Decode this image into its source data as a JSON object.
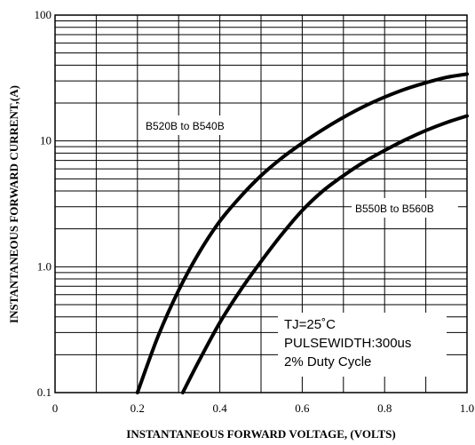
{
  "chart_data": {
    "type": "line",
    "xlabel": "INSTANTANEOUS FORWARD VOLTAGE, (VOLTS)",
    "ylabel": "INSTANTANEOUS FORWARD CURRENT,(A)",
    "xlim": [
      0,
      1.0
    ],
    "ylim": [
      0.1,
      100
    ],
    "y_scale": "log",
    "grid": true,
    "x_ticks": [
      {
        "value": 0,
        "label": "0"
      },
      {
        "value": 0.2,
        "label": "0.2"
      },
      {
        "value": 0.4,
        "label": "0.4"
      },
      {
        "value": 0.6,
        "label": "0.6"
      },
      {
        "value": 0.8,
        "label": "0.8"
      },
      {
        "value": 1.0,
        "label": "1.0"
      }
    ],
    "y_ticks": [
      {
        "value": 0.1,
        "label": "0.1"
      },
      {
        "value": 1,
        "label": "1.0"
      },
      {
        "value": 10,
        "label": "10"
      },
      {
        "value": 100,
        "label": "100"
      }
    ],
    "series": [
      {
        "name": "B520B to B540B",
        "x": [
          0.2,
          0.25,
          0.3,
          0.35,
          0.4,
          0.45,
          0.5,
          0.55,
          0.6,
          0.65,
          0.7,
          0.75,
          0.8,
          0.85,
          0.9,
          0.95,
          1.0
        ],
        "y": [
          0.1,
          0.28,
          0.65,
          1.3,
          2.3,
          3.6,
          5.3,
          7.3,
          9.6,
          12.3,
          15.4,
          18.8,
          22.3,
          25.8,
          29.0,
          32.0,
          34.0
        ]
      },
      {
        "name": "B550B to B560B",
        "x": [
          0.31,
          0.35,
          0.4,
          0.45,
          0.5,
          0.55,
          0.6,
          0.65,
          0.7,
          0.75,
          0.8,
          0.85,
          0.9,
          0.95,
          1.0
        ],
        "y": [
          0.1,
          0.18,
          0.36,
          0.65,
          1.1,
          1.8,
          2.8,
          4.0,
          5.3,
          6.8,
          8.4,
          10.2,
          12.1,
          14.0,
          15.8
        ]
      }
    ],
    "annotations": [
      "TJ=25˚C",
      "PULSEWIDTH:300us",
      "2% Duty Cycle"
    ]
  }
}
